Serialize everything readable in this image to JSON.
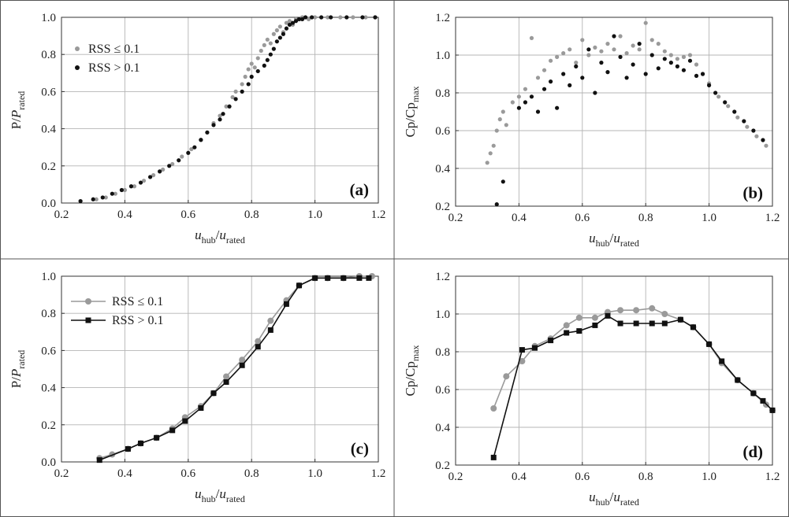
{
  "colors": {
    "rss_low": "#9a9a9a",
    "rss_high": "#111111",
    "grid": "#b4b4b4"
  },
  "chart_data": [
    {
      "id": "a",
      "type": "scatter",
      "panel_label": "(a)",
      "xlabel": {
        "main": "u",
        "sub": "hub",
        "sep": "/",
        "main2": "u",
        "sub2": "rated"
      },
      "ylabel": {
        "main": "P/P",
        "sub": "rated"
      },
      "xlim": [
        0.2,
        1.2
      ],
      "ylim": [
        0.0,
        1.0
      ],
      "xticks": [
        "0.2",
        "0.4",
        "0.6",
        "0.8",
        "1.0",
        "1.2"
      ],
      "yticks": [
        "0.0",
        "0.2",
        "0.4",
        "0.6",
        "0.8",
        "1.0"
      ],
      "grid": true,
      "legend": "top-left",
      "series": [
        {
          "name": "RSS ≤ 0.1",
          "color_key": "rss_low",
          "marker": "dot",
          "x": [
            0.31,
            0.34,
            0.37,
            0.4,
            0.43,
            0.46,
            0.49,
            0.52,
            0.55,
            0.58,
            0.61,
            0.64,
            0.66,
            0.68,
            0.7,
            0.72,
            0.74,
            0.75,
            0.77,
            0.78,
            0.79,
            0.8,
            0.81,
            0.82,
            0.83,
            0.84,
            0.85,
            0.86,
            0.87,
            0.88,
            0.89,
            0.9,
            0.91,
            0.92,
            0.93,
            0.94,
            0.95,
            0.96,
            0.98,
            1.0,
            1.04,
            1.08,
            1.12,
            1.16,
            1.19
          ],
          "y": [
            0.02,
            0.03,
            0.05,
            0.07,
            0.09,
            0.12,
            0.15,
            0.18,
            0.21,
            0.25,
            0.29,
            0.34,
            0.38,
            0.43,
            0.47,
            0.52,
            0.57,
            0.6,
            0.64,
            0.68,
            0.72,
            0.75,
            0.73,
            0.78,
            0.82,
            0.85,
            0.88,
            0.86,
            0.91,
            0.93,
            0.95,
            0.92,
            0.97,
            0.98,
            0.96,
            0.99,
            0.99,
            1.0,
            0.99,
            1.0,
            1.0,
            1.0,
            1.0,
            1.0,
            1.0
          ]
        },
        {
          "name": "RSS > 0.1",
          "color_key": "rss_high",
          "marker": "dot",
          "x": [
            0.26,
            0.3,
            0.33,
            0.36,
            0.39,
            0.42,
            0.45,
            0.48,
            0.51,
            0.54,
            0.57,
            0.6,
            0.62,
            0.64,
            0.66,
            0.68,
            0.7,
            0.71,
            0.73,
            0.75,
            0.77,
            0.79,
            0.8,
            0.82,
            0.84,
            0.85,
            0.86,
            0.87,
            0.88,
            0.89,
            0.9,
            0.91,
            0.92,
            0.93,
            0.94,
            0.95,
            0.96,
            0.97,
            0.99,
            1.02,
            1.05,
            1.1,
            1.15,
            1.19
          ],
          "y": [
            0.01,
            0.02,
            0.03,
            0.05,
            0.07,
            0.09,
            0.11,
            0.14,
            0.17,
            0.2,
            0.23,
            0.27,
            0.3,
            0.34,
            0.38,
            0.42,
            0.45,
            0.48,
            0.52,
            0.56,
            0.6,
            0.64,
            0.68,
            0.71,
            0.74,
            0.77,
            0.8,
            0.83,
            0.87,
            0.89,
            0.91,
            0.94,
            0.96,
            0.97,
            0.98,
            0.99,
            0.99,
            1.0,
            1.0,
            1.0,
            1.0,
            1.0,
            1.0,
            1.0
          ]
        }
      ]
    },
    {
      "id": "b",
      "type": "scatter",
      "panel_label": "(b)",
      "xlabel": {
        "main": "u",
        "sub": "hub",
        "sep": "/",
        "main2": "u",
        "sub2": "rated"
      },
      "ylabel": {
        "main": "Cp/Cp",
        "sub": "max"
      },
      "xlim": [
        0.2,
        1.2
      ],
      "ylim": [
        0.2,
        1.2
      ],
      "xticks": [
        "0.2",
        "0.4",
        "0.6",
        "0.8",
        "1.0",
        "1.2"
      ],
      "yticks": [
        "0.2",
        "0.4",
        "0.6",
        "0.8",
        "1.0",
        "1.2"
      ],
      "grid": true,
      "legend": "none",
      "series": [
        {
          "name": "RSS ≤ 0.1",
          "color_key": "rss_low",
          "marker": "dot",
          "x": [
            0.3,
            0.31,
            0.32,
            0.33,
            0.34,
            0.35,
            0.36,
            0.38,
            0.4,
            0.42,
            0.44,
            0.46,
            0.48,
            0.5,
            0.52,
            0.54,
            0.56,
            0.58,
            0.6,
            0.62,
            0.64,
            0.66,
            0.68,
            0.7,
            0.72,
            0.74,
            0.76,
            0.78,
            0.8,
            0.82,
            0.84,
            0.86,
            0.88,
            0.9,
            0.92,
            0.94,
            0.96,
            0.98,
            1.0,
            1.03,
            1.06,
            1.09,
            1.12,
            1.15,
            1.18
          ],
          "y": [
            0.43,
            0.48,
            0.52,
            0.6,
            0.66,
            0.7,
            0.63,
            0.75,
            0.78,
            0.82,
            1.09,
            0.88,
            0.92,
            0.97,
            0.99,
            1.01,
            1.03,
            0.96,
            1.08,
            1.0,
            1.04,
            1.02,
            1.06,
            1.03,
            1.1,
            1.01,
            1.05,
            1.03,
            1.17,
            1.08,
            1.06,
            1.02,
            1.0,
            0.98,
            0.99,
            1.0,
            0.95,
            0.9,
            0.85,
            0.78,
            0.73,
            0.67,
            0.62,
            0.57,
            0.52
          ]
        },
        {
          "name": "RSS > 0.1",
          "color_key": "rss_high",
          "marker": "dot",
          "x": [
            0.33,
            0.35,
            0.4,
            0.42,
            0.44,
            0.46,
            0.48,
            0.5,
            0.52,
            0.54,
            0.56,
            0.58,
            0.6,
            0.62,
            0.64,
            0.66,
            0.68,
            0.7,
            0.72,
            0.74,
            0.76,
            0.78,
            0.8,
            0.82,
            0.84,
            0.86,
            0.88,
            0.9,
            0.92,
            0.94,
            0.96,
            0.98,
            1.0,
            1.02,
            1.05,
            1.08,
            1.11,
            1.14,
            1.17
          ],
          "y": [
            0.21,
            0.33,
            0.72,
            0.75,
            0.78,
            0.7,
            0.82,
            0.86,
            0.72,
            0.9,
            0.84,
            0.94,
            0.88,
            1.03,
            0.8,
            0.96,
            0.91,
            1.1,
            0.99,
            0.88,
            0.95,
            1.06,
            0.9,
            1.0,
            0.93,
            0.98,
            0.96,
            0.94,
            0.92,
            0.97,
            0.89,
            0.9,
            0.84,
            0.8,
            0.75,
            0.7,
            0.65,
            0.6,
            0.55
          ]
        }
      ]
    },
    {
      "id": "c",
      "type": "line",
      "panel_label": "(c)",
      "xlabel": {
        "main": "u",
        "sub": "hub",
        "sep": "/",
        "main2": "u",
        "sub2": "rated"
      },
      "ylabel": {
        "main": "P/P",
        "sub": "rated"
      },
      "xlim": [
        0.2,
        1.2
      ],
      "ylim": [
        0.0,
        1.0
      ],
      "xticks": [
        "0.2",
        "0.4",
        "0.6",
        "0.8",
        "1.0",
        "1.2"
      ],
      "yticks": [
        "0.0",
        "0.2",
        "0.4",
        "0.6",
        "0.8",
        "1.0"
      ],
      "grid": true,
      "legend": "top-left",
      "series": [
        {
          "name": "RSS ≤ 0.1",
          "color_key": "rss_low",
          "marker": "circle",
          "x": [
            0.32,
            0.36,
            0.41,
            0.45,
            0.5,
            0.55,
            0.59,
            0.64,
            0.68,
            0.72,
            0.77,
            0.82,
            0.86,
            0.91,
            0.95,
            1.0,
            1.04,
            1.09,
            1.14,
            1.18
          ],
          "y": [
            0.02,
            0.04,
            0.07,
            0.1,
            0.13,
            0.18,
            0.24,
            0.3,
            0.37,
            0.46,
            0.55,
            0.65,
            0.76,
            0.87,
            0.95,
            0.99,
            0.99,
            0.99,
            1.0,
            1.0
          ]
        },
        {
          "name": "RSS > 0.1",
          "color_key": "rss_high",
          "marker": "square",
          "x": [
            0.32,
            0.41,
            0.45,
            0.5,
            0.55,
            0.59,
            0.64,
            0.68,
            0.72,
            0.77,
            0.82,
            0.86,
            0.91,
            0.95,
            1.0,
            1.04,
            1.09,
            1.14,
            1.17
          ],
          "y": [
            0.01,
            0.07,
            0.1,
            0.13,
            0.17,
            0.22,
            0.29,
            0.37,
            0.43,
            0.52,
            0.62,
            0.71,
            0.85,
            0.95,
            0.99,
            0.99,
            0.99,
            0.99,
            0.99
          ]
        }
      ]
    },
    {
      "id": "d",
      "type": "line",
      "panel_label": "(d)",
      "xlabel": {
        "main": "u",
        "sub": "hub",
        "sep": "/",
        "main2": "u",
        "sub2": "rated"
      },
      "ylabel": {
        "main": "Cp/Cp",
        "sub": "max"
      },
      "xlim": [
        0.2,
        1.2
      ],
      "ylim": [
        0.2,
        1.2
      ],
      "xticks": [
        "0.2",
        "0.4",
        "0.6",
        "0.8",
        "1.0",
        "1.2"
      ],
      "yticks": [
        "0.2",
        "0.4",
        "0.6",
        "0.8",
        "1.0",
        "1.2"
      ],
      "grid": true,
      "legend": "none",
      "series": [
        {
          "name": "RSS ≤ 0.1",
          "color_key": "rss_low",
          "marker": "circle",
          "x": [
            0.32,
            0.36,
            0.41,
            0.45,
            0.5,
            0.55,
            0.59,
            0.64,
            0.68,
            0.72,
            0.77,
            0.82,
            0.86,
            0.91,
            0.95,
            1.0,
            1.04,
            1.09,
            1.14,
            1.18,
            1.2
          ],
          "y": [
            0.5,
            0.67,
            0.75,
            0.83,
            0.87,
            0.94,
            0.98,
            0.98,
            1.01,
            1.02,
            1.02,
            1.03,
            1.0,
            0.97,
            0.93,
            0.84,
            0.74,
            0.65,
            0.58,
            0.52,
            0.49
          ]
        },
        {
          "name": "RSS > 0.1",
          "color_key": "rss_high",
          "marker": "square",
          "x": [
            0.32,
            0.41,
            0.45,
            0.5,
            0.55,
            0.59,
            0.64,
            0.68,
            0.72,
            0.77,
            0.82,
            0.86,
            0.91,
            0.95,
            1.0,
            1.04,
            1.09,
            1.14,
            1.17,
            1.2
          ],
          "y": [
            0.24,
            0.81,
            0.82,
            0.86,
            0.9,
            0.91,
            0.94,
            0.99,
            0.95,
            0.95,
            0.95,
            0.95,
            0.97,
            0.93,
            0.84,
            0.75,
            0.65,
            0.58,
            0.54,
            0.49
          ]
        }
      ]
    }
  ]
}
